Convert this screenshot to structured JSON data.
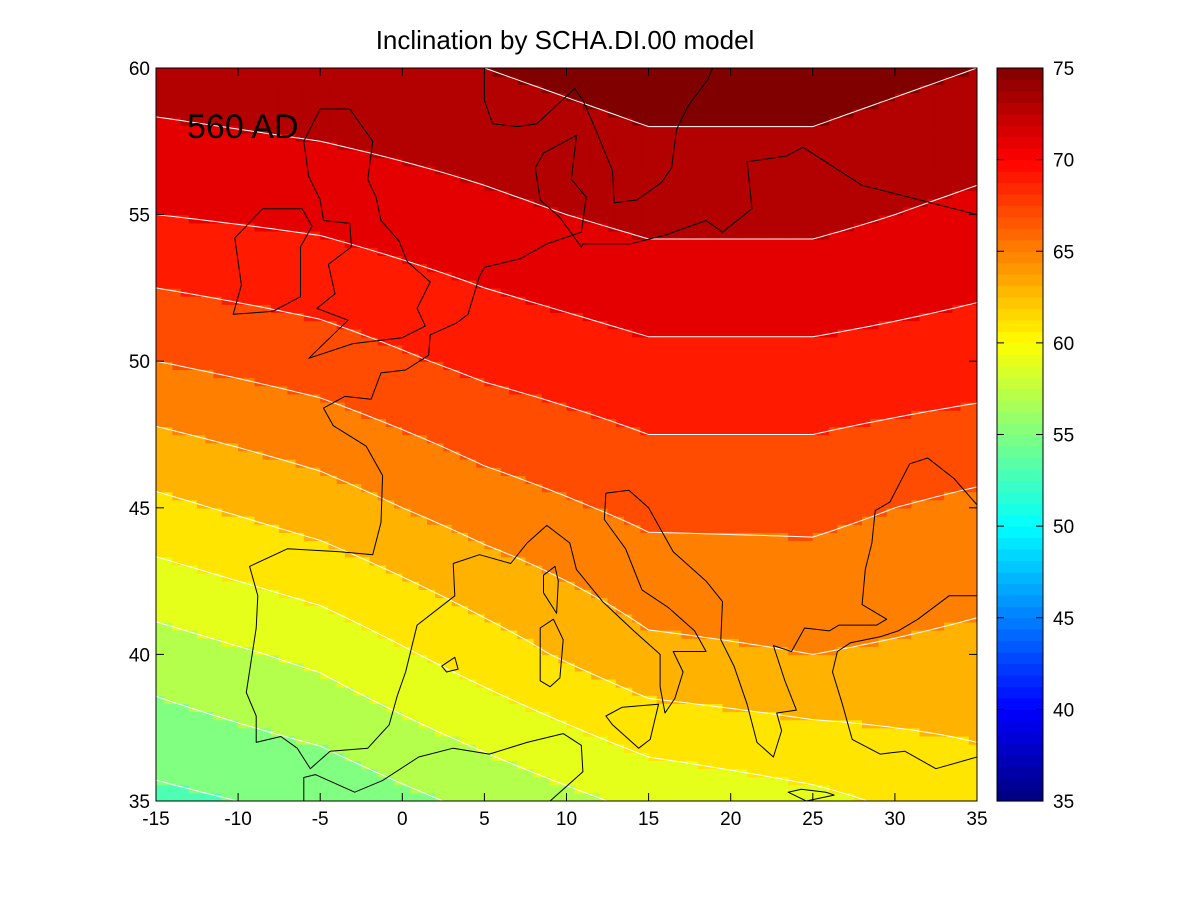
{
  "chart_data": {
    "type": "heatmap",
    "title": "Inclination by SCHA.DI.00 model",
    "annotation": "560 AD",
    "xlim": [
      -15,
      35
    ],
    "ylim": [
      35,
      60
    ],
    "x_ticks": [
      "-15",
      "-10",
      "-5",
      "0",
      "5",
      "10",
      "15",
      "20",
      "25",
      "30",
      "35"
    ],
    "y_ticks": [
      "35",
      "40",
      "45",
      "50",
      "55",
      "60"
    ],
    "colorbar": {
      "range": [
        35,
        75
      ],
      "ticks": [
        "35",
        "40",
        "45",
        "50",
        "55",
        "60",
        "65",
        "70",
        "75"
      ],
      "colormap": "jet"
    },
    "contour_interval": 2,
    "contour_line_color": "#ffffff",
    "coastline_color": "#000000",
    "grid": false,
    "estimated_inclination_grid": {
      "lon": [
        -15,
        -5,
        5,
        15,
        25,
        35
      ],
      "lat": [
        35,
        40,
        45,
        50,
        55,
        60
      ],
      "values": [
        [
          53.5,
          54.5,
          56.5,
          58.5,
          59.5,
          61.0
        ],
        [
          57.0,
          58.5,
          61.0,
          63.5,
          64.0,
          63.5
        ],
        [
          61.5,
          63.0,
          65.0,
          66.5,
          66.5,
          65.5
        ],
        [
          66.0,
          67.0,
          68.5,
          69.5,
          69.5,
          69.0
        ],
        [
          70.0,
          70.5,
          71.5,
          72.5,
          72.5,
          71.5
        ],
        [
          73.0,
          73.5,
          74.0,
          75.0,
          75.0,
          74.0
        ]
      ]
    }
  }
}
